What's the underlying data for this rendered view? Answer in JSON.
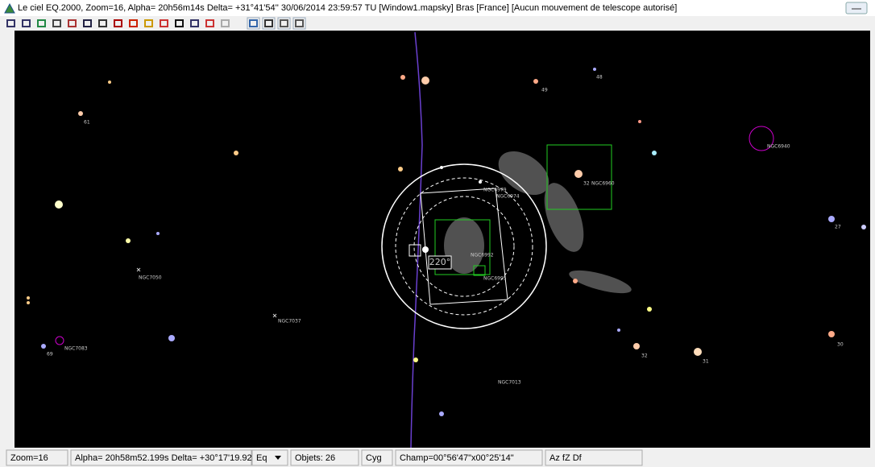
{
  "window": {
    "title": "Le ciel EQ.2000, Zoom=16, Alpha= 20h56m14s Delta= +31°41'54''   30/06/2014 23:59:57 TU [Window1.mapsky]  Bras [France] [Aucun mouvement de telescope autorisé]"
  },
  "sky_labels": [
    "61",
    "49",
    "48",
    "32",
    "NGC6960",
    "NGC6940",
    "NGC6979",
    "NGC6974",
    "NGC6992",
    "NGC6995",
    "NGC7050",
    "NGC7037",
    "NGC7083",
    "69",
    "NGC7013",
    "32",
    "31",
    "27",
    "30",
    "220°"
  ],
  "status_bar": {
    "zoom": "Zoom=16",
    "position": "Alpha= 20h58m52.199s Delta= +30°17'19.92\"",
    "mode": "Eq",
    "objects": "Objets: 26",
    "constellation": "Cyg",
    "field": "Champ=00°56'47\"x00°25'14\"",
    "flags": "Az fZ Df"
  }
}
